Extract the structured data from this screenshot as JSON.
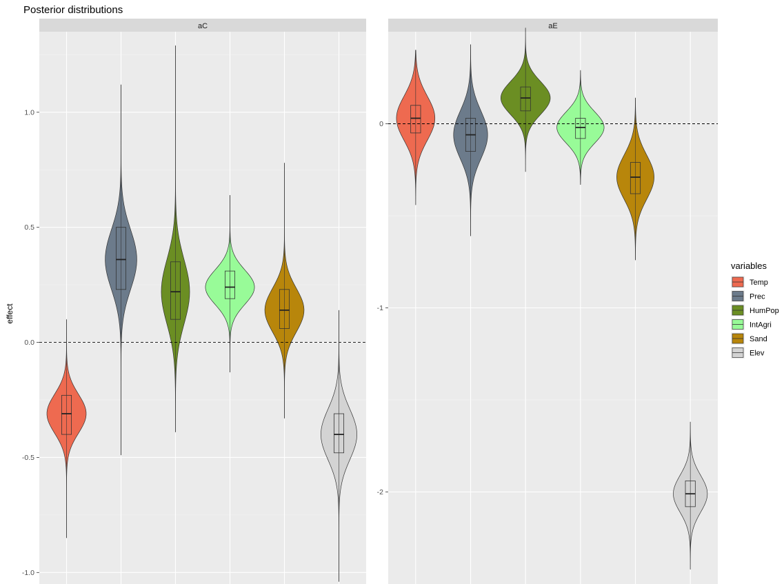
{
  "chart_data": {
    "type": "violin",
    "title": "Posterior distributions",
    "ylabel": "effect",
    "xlabel": "",
    "grid": true,
    "legend": {
      "title": "variables",
      "position": "right",
      "entries": [
        {
          "name": "Temp",
          "color": "#EE6A50"
        },
        {
          "name": "Prec",
          "color": "#6C7B8B"
        },
        {
          "name": "HumPop",
          "color": "#6B8E23"
        },
        {
          "name": "IntAgri",
          "color": "#98FB98"
        },
        {
          "name": "Sand",
          "color": "#B8860B"
        },
        {
          "name": "Elev",
          "color": "#D3D3D3"
        }
      ]
    },
    "reference_line": {
      "y": 0,
      "style": "dashed"
    },
    "panels": [
      {
        "strip": "aC",
        "ylim": [
          -1.05,
          1.35
        ],
        "yticks": [
          -1.0,
          -0.5,
          0.0,
          0.5,
          1.0
        ],
        "ytick_labels": [
          "-1.0",
          "-0.5",
          "0.0",
          "0.5",
          "1.0"
        ],
        "series": [
          {
            "name": "Temp",
            "min": -0.85,
            "max": 0.1,
            "q1": -0.4,
            "median": -0.31,
            "q3": -0.23,
            "mode": -0.31,
            "spread": 0.085,
            "max_width": 0.72
          },
          {
            "name": "Prec",
            "min": -0.49,
            "max": 1.12,
            "q1": 0.23,
            "median": 0.36,
            "q3": 0.5,
            "mode": 0.36,
            "spread": 0.13,
            "max_width": 0.58
          },
          {
            "name": "HumPop",
            "min": -0.39,
            "max": 1.29,
            "q1": 0.1,
            "median": 0.22,
            "q3": 0.35,
            "mode": 0.22,
            "spread": 0.14,
            "max_width": 0.52
          },
          {
            "name": "IntAgri",
            "min": -0.13,
            "max": 0.64,
            "q1": 0.19,
            "median": 0.24,
            "q3": 0.31,
            "mode": 0.24,
            "spread": 0.075,
            "max_width": 0.9
          },
          {
            "name": "Sand",
            "min": -0.33,
            "max": 0.78,
            "q1": 0.06,
            "median": 0.14,
            "q3": 0.23,
            "mode": 0.14,
            "spread": 0.095,
            "max_width": 0.72
          },
          {
            "name": "Elev",
            "min": -1.04,
            "max": 0.14,
            "q1": -0.48,
            "median": -0.4,
            "q3": -0.31,
            "mode": -0.4,
            "spread": 0.11,
            "max_width": 0.66
          }
        ]
      },
      {
        "strip": "aE",
        "ylim": [
          -2.5,
          0.5
        ],
        "yticks": [
          -2,
          -1,
          0
        ],
        "ytick_labels": [
          "-2",
          "-1",
          "0"
        ],
        "series": [
          {
            "name": "Temp",
            "min": -0.44,
            "max": 0.4,
            "q1": -0.05,
            "median": 0.03,
            "q3": 0.1,
            "mode": 0.03,
            "spread": 0.12,
            "max_width": 0.7
          },
          {
            "name": "Prec",
            "min": -0.61,
            "max": 0.43,
            "q1": -0.15,
            "median": -0.06,
            "q3": 0.03,
            "mode": -0.06,
            "spread": 0.13,
            "max_width": 0.62
          },
          {
            "name": "HumPop",
            "min": -0.26,
            "max": 0.52,
            "q1": 0.07,
            "median": 0.14,
            "q3": 0.2,
            "mode": 0.14,
            "spread": 0.09,
            "max_width": 0.9
          },
          {
            "name": "IntAgri",
            "min": -0.33,
            "max": 0.29,
            "q1": -0.08,
            "median": -0.02,
            "q3": 0.03,
            "mode": -0.02,
            "spread": 0.085,
            "max_width": 0.86
          },
          {
            "name": "Sand",
            "min": -0.74,
            "max": 0.14,
            "q1": -0.38,
            "median": -0.29,
            "q3": -0.21,
            "mode": -0.29,
            "spread": 0.12,
            "max_width": 0.68
          },
          {
            "name": "Elev",
            "min": -2.42,
            "max": -1.62,
            "q1": -2.08,
            "median": -2.01,
            "q3": -1.94,
            "mode": -2.01,
            "spread": 0.1,
            "max_width": 0.62
          }
        ]
      }
    ]
  }
}
